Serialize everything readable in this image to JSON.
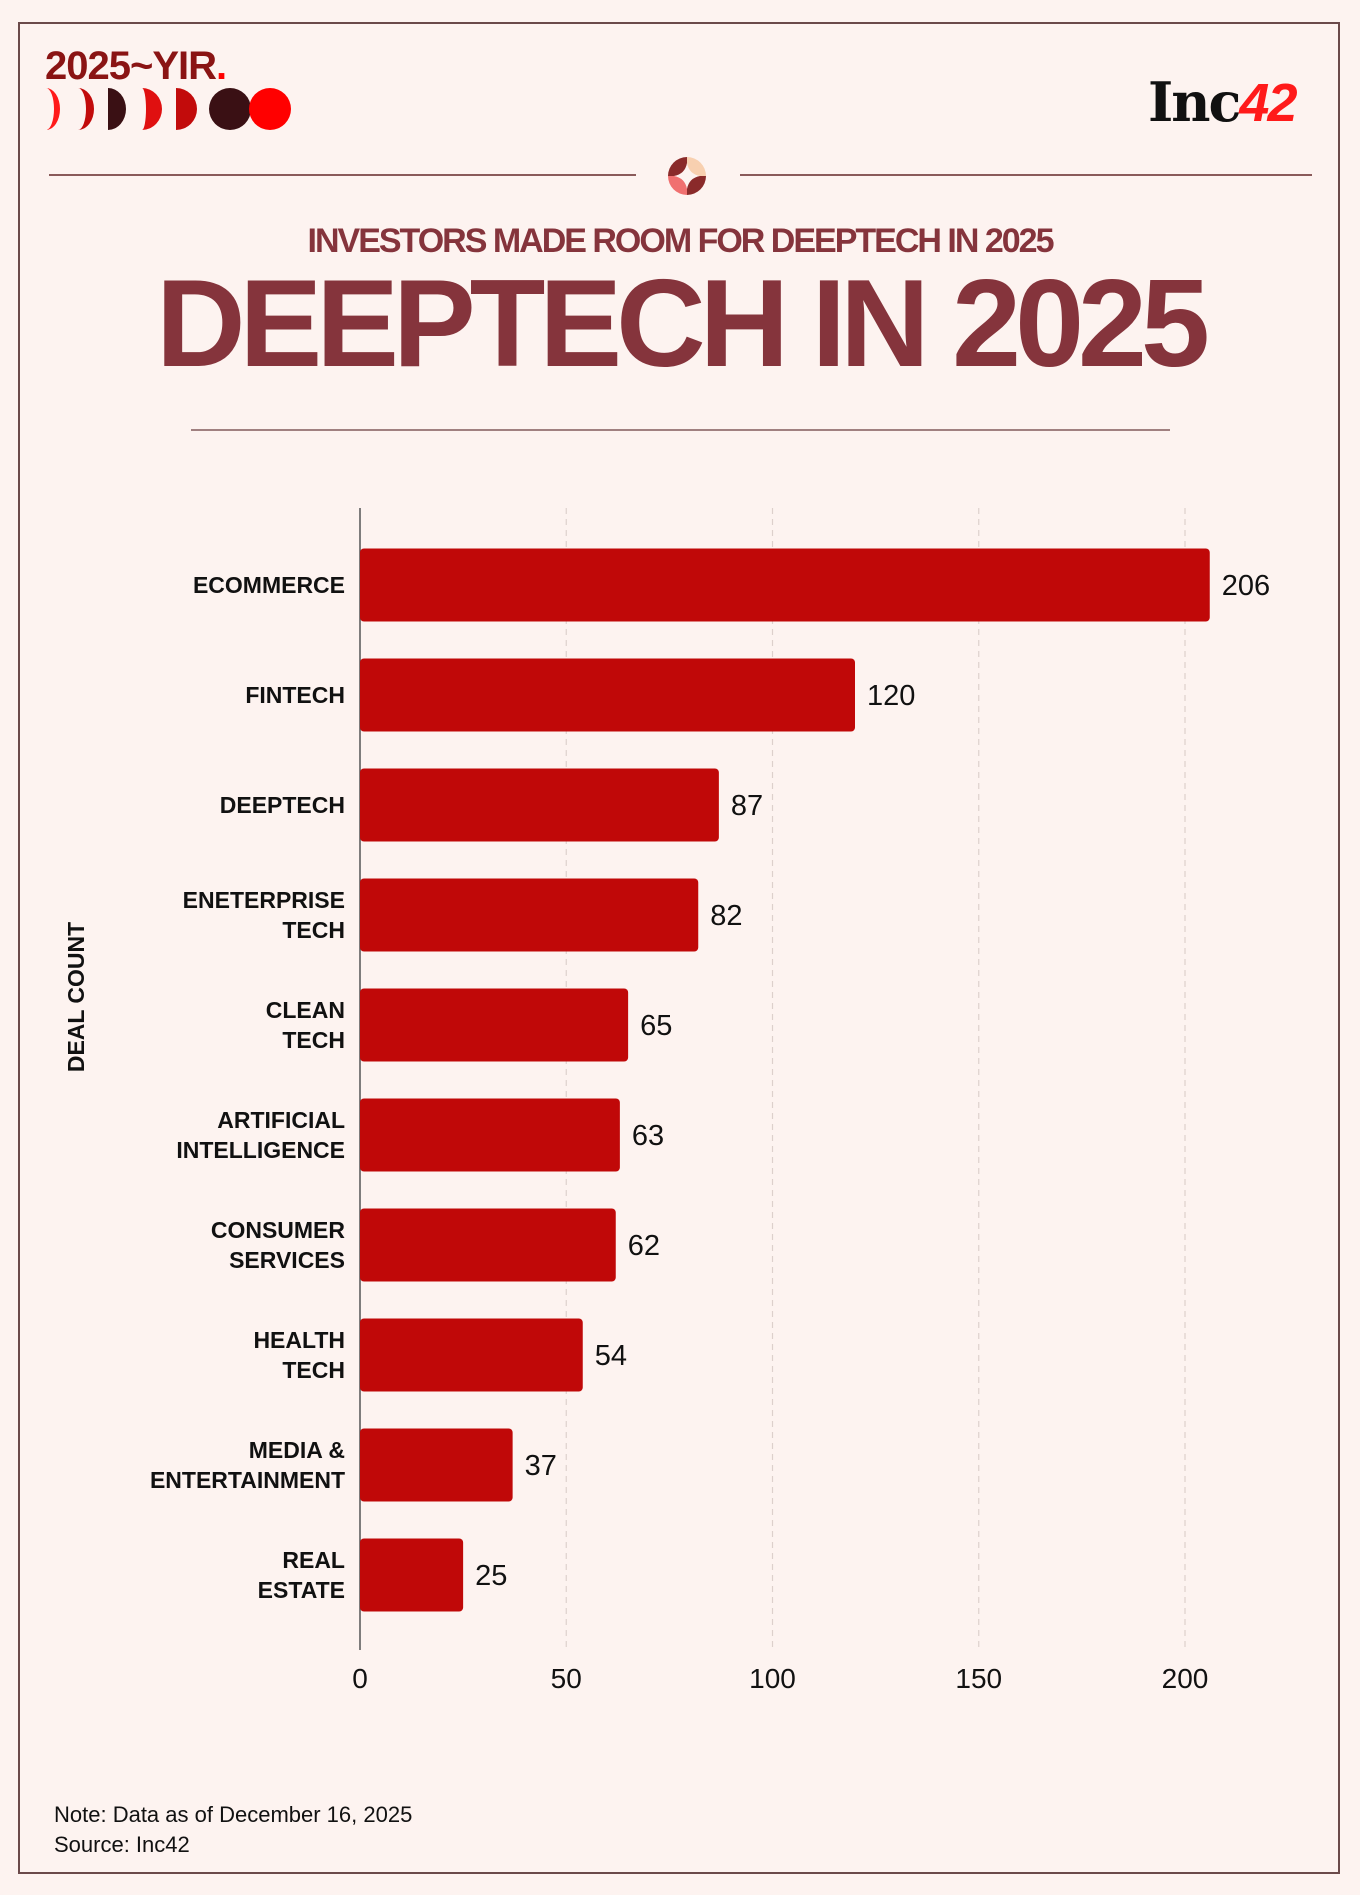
{
  "branding": {
    "series_logo_text": "2025~YIR",
    "series_logo_dot": ".",
    "publisher_logo_text": "Inc",
    "publisher_logo_number": "42"
  },
  "header": {
    "subtitle": "INVESTORS MADE ROOM FOR DEEPTECH IN 2025",
    "title": "DEEPTECH IN 2025"
  },
  "colors": {
    "bar": "#c00808",
    "title": "#85343c",
    "background": "#fdf3f0"
  },
  "chart_data": {
    "type": "bar",
    "orientation": "horizontal",
    "categories": [
      "ECOMMERCE",
      "FINTECH",
      "DEEPTECH",
      "ENETERPRISE\nTECH",
      "CLEAN\nTECH",
      "ARTIFICIAL\nINTELLIGENCE",
      "CONSUMER\nSERVICES",
      "HEALTH\nTECH",
      "MEDIA &\nENTERTAINMENT",
      "REAL\nESTATE"
    ],
    "values": [
      206,
      120,
      87,
      82,
      65,
      63,
      62,
      54,
      37,
      25
    ],
    "ylabel": "DEAL COUNT",
    "xlabel": "",
    "xlim": [
      0,
      215
    ],
    "xticks": [
      0,
      50,
      100,
      150,
      200
    ],
    "grid": "vertical dashed",
    "legend": "none"
  },
  "footer": {
    "note": "Note: Data as of December 16, 2025",
    "source": "Source: Inc42"
  }
}
